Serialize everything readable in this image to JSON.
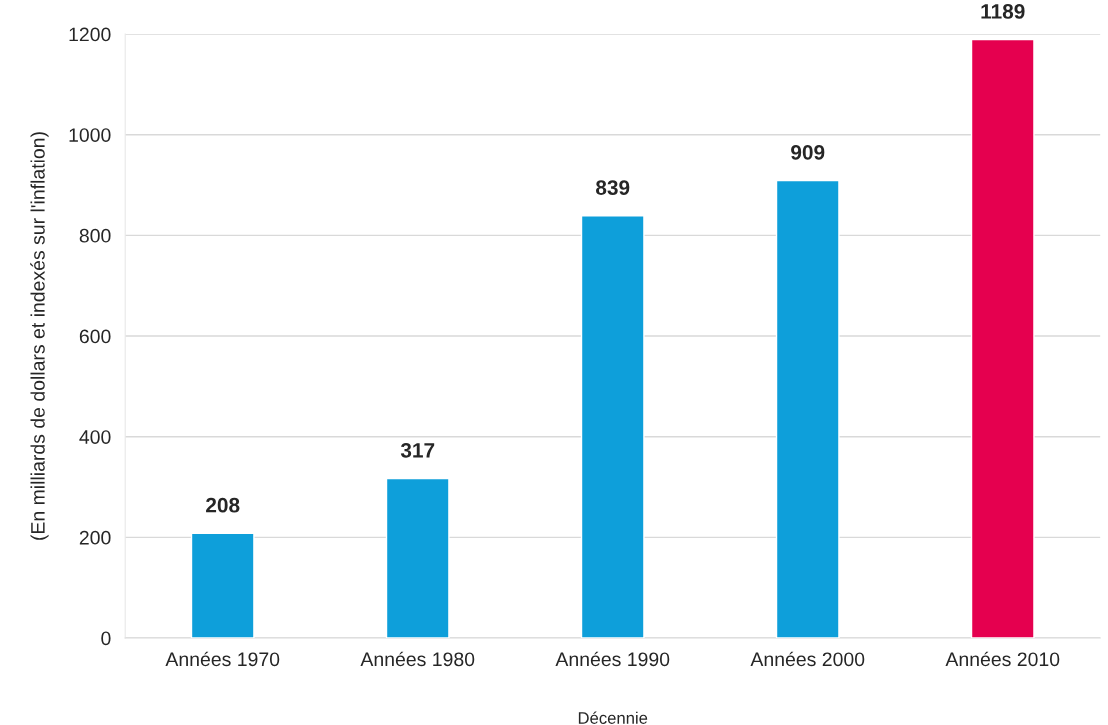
{
  "chart_data": {
    "type": "bar",
    "xlabel": "Décennie",
    "ylabel": "(En milliards de dollars et indexés sur l'inflation)",
    "categories": [
      "Années 1970",
      "Années 1980",
      "Années 1990",
      "Années 2000",
      "Années 2010"
    ],
    "values": [
      208,
      317,
      839,
      909,
      1189
    ],
    "colors": [
      "#0e9fda",
      "#0e9fda",
      "#0e9fda",
      "#0e9fda",
      "#e5004f"
    ],
    "ylim": [
      0,
      1200
    ],
    "yticks": [
      0,
      200,
      400,
      600,
      800,
      1000,
      1200
    ],
    "grid": "y",
    "data_labels": true,
    "legend": false
  }
}
